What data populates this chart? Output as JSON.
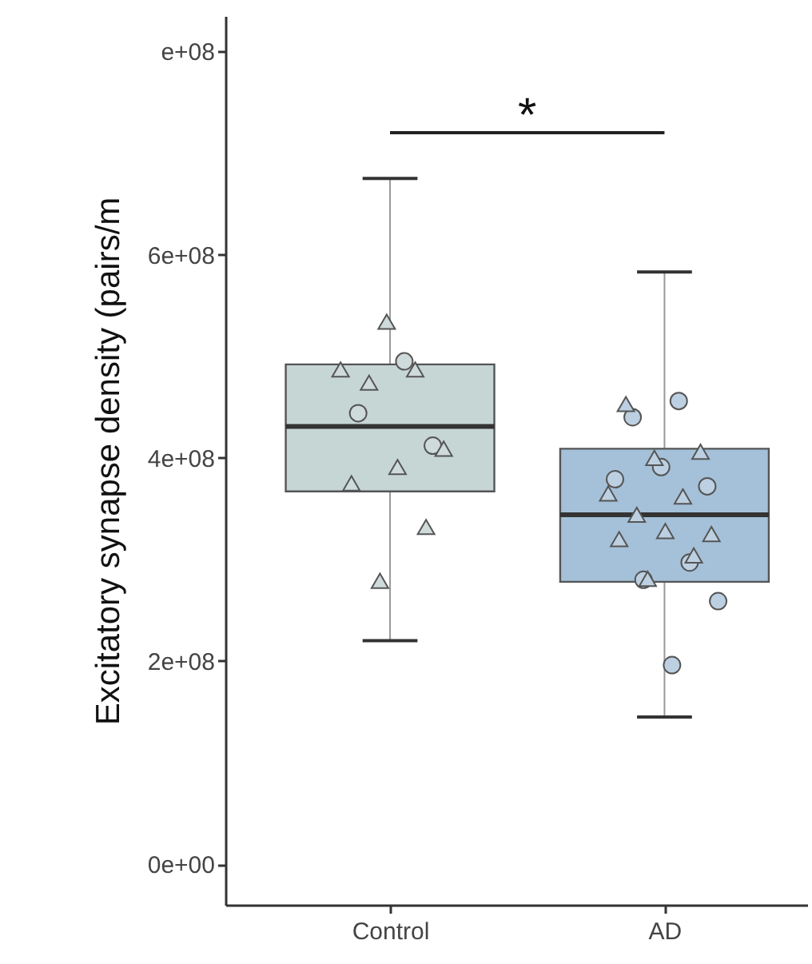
{
  "chart_data": {
    "type": "box",
    "ylabel": "Excitatory synapse density (pairs/m",
    "categories": [
      "Control",
      "AD"
    ],
    "boxes": [
      {
        "low": 220000000,
        "q1": 367000000,
        "median": 431000000,
        "q3": 492000000,
        "high": 675000000
      },
      {
        "low": 145000000,
        "q1": 278000000,
        "median": 344000000,
        "q3": 409000000,
        "high": 583000000
      }
    ],
    "colors": [
      "#c6d6d4",
      "#a5c1d9"
    ],
    "ylim": [
      -40000000,
      835000000
    ],
    "yticks": [
      {
        "value": 0,
        "label": "0e+00"
      },
      {
        "value": 200000000,
        "label": "2e+08"
      },
      {
        "value": 400000000,
        "label": "4e+08"
      },
      {
        "value": 600000000,
        "label": "6e+08"
      },
      {
        "value": 800000000,
        "label": "e+08"
      }
    ],
    "series": [
      {
        "type": "scatter",
        "marker": "circle",
        "color": "#cfdada",
        "x": [
          "Control",
          "Control",
          "Control"
        ],
        "values": [
          495000000,
          444000000,
          412000000
        ]
      },
      {
        "type": "scatter",
        "marker": "triangle",
        "color": "#cfdada",
        "x": [
          "Control",
          "Control",
          "Control",
          "Control",
          "Control",
          "Control",
          "Control",
          "Control",
          "Control"
        ],
        "values": [
          534000000,
          487000000,
          487000000,
          474000000,
          409000000,
          391000000,
          375000000,
          332000000,
          279000000
        ]
      },
      {
        "type": "scatter",
        "marker": "circle",
        "color": "#bcd0e2",
        "x": [
          "AD",
          "AD",
          "AD",
          "AD",
          "AD",
          "AD",
          "AD",
          "AD",
          "AD"
        ],
        "values": [
          456000000,
          440000000,
          372000000,
          391000000,
          379000000,
          297000000,
          280000000,
          259000000,
          196000000
        ]
      },
      {
        "type": "scatter",
        "marker": "triangle",
        "color": "#bcd0e2",
        "x": [
          "AD",
          "AD",
          "AD",
          "AD",
          "AD",
          "AD",
          "AD",
          "AD",
          "AD",
          "AD",
          "AD"
        ],
        "values": [
          453000000,
          406000000,
          400000000,
          365000000,
          362000000,
          344000000,
          325000000,
          328000000,
          320000000,
          304000000,
          281000000
        ]
      }
    ],
    "annotations": [
      "*"
    ]
  }
}
